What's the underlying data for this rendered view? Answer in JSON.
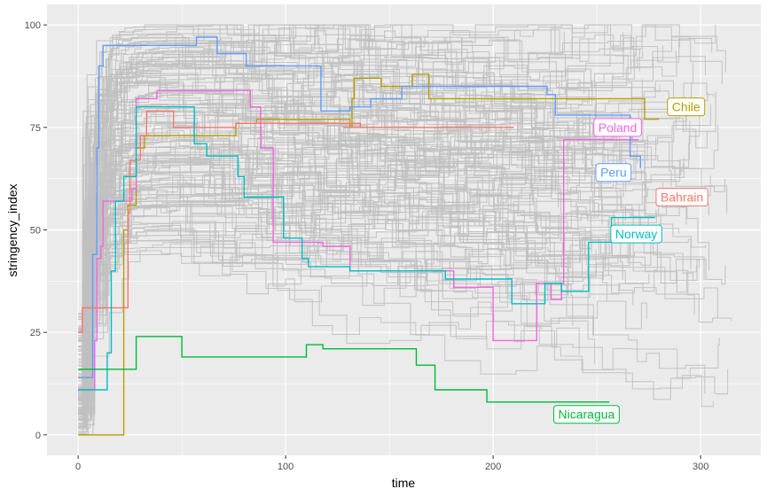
{
  "chart_data": {
    "type": "line",
    "title": "",
    "xlabel": "time",
    "ylabel": "stringency_index",
    "xlim": [
      -15,
      329
    ],
    "ylim": [
      -5,
      105
    ],
    "x_ticks": [
      0,
      100,
      200,
      300
    ],
    "y_ticks": [
      0,
      25,
      50,
      75,
      100
    ],
    "grid": true,
    "legend": "none",
    "panel_background": "#ebebeb",
    "grid_color": "#ffffff",
    "background_series_color": "#bfbfbf",
    "highlighted_series": [
      {
        "name": "Chile",
        "color": "#b79f00",
        "steps": [
          [
            0,
            0
          ],
          [
            20,
            0
          ],
          [
            22,
            50
          ],
          [
            24,
            56
          ],
          [
            27,
            56
          ],
          [
            28,
            70
          ],
          [
            32,
            73
          ],
          [
            75,
            73
          ],
          [
            76,
            76
          ],
          [
            85,
            76
          ],
          [
            86,
            77
          ],
          [
            128,
            77
          ],
          [
            131,
            75
          ],
          [
            132,
            82
          ],
          [
            133,
            87
          ],
          [
            145,
            87
          ],
          [
            146,
            85
          ],
          [
            160,
            85
          ],
          [
            161,
            88
          ],
          [
            168,
            88
          ],
          [
            169,
            82
          ],
          [
            272,
            82
          ],
          [
            273,
            77
          ],
          [
            280,
            77
          ]
        ],
        "label": "Chile",
        "label_at": [
          293,
          80
        ]
      },
      {
        "name": "Poland",
        "color": "#f564e3",
        "steps": [
          [
            0,
            11
          ],
          [
            7,
            11
          ],
          [
            8,
            23
          ],
          [
            9,
            43
          ],
          [
            11,
            46
          ],
          [
            12,
            57
          ],
          [
            25,
            57
          ],
          [
            26,
            60
          ],
          [
            28,
            82
          ],
          [
            37,
            82
          ],
          [
            38,
            84
          ],
          [
            82,
            84
          ],
          [
            83,
            80
          ],
          [
            86,
            80
          ],
          [
            88,
            70
          ],
          [
            94,
            47
          ],
          [
            117,
            47
          ],
          [
            118,
            46
          ],
          [
            130,
            46
          ],
          [
            131,
            40
          ],
          [
            180,
            40
          ],
          [
            181,
            36
          ],
          [
            199,
            36
          ],
          [
            200,
            23
          ],
          [
            220,
            23
          ],
          [
            221,
            37
          ],
          [
            227,
            37
          ],
          [
            228,
            33
          ],
          [
            230,
            33
          ],
          [
            233,
            37
          ],
          [
            234,
            72
          ],
          [
            270,
            72
          ]
        ],
        "label": "Poland",
        "label_at": [
          260,
          75
        ]
      },
      {
        "name": "Peru",
        "color": "#619cff",
        "steps": [
          [
            0,
            14
          ],
          [
            5,
            14
          ],
          [
            7,
            44
          ],
          [
            9,
            70
          ],
          [
            10,
            90
          ],
          [
            12,
            95
          ],
          [
            56,
            95
          ],
          [
            57,
            97
          ],
          [
            66,
            97
          ],
          [
            67,
            93
          ],
          [
            80,
            93
          ],
          [
            81,
            90
          ],
          [
            116,
            90
          ],
          [
            117,
            79
          ],
          [
            130,
            79
          ],
          [
            131,
            80
          ],
          [
            140,
            80
          ],
          [
            141,
            82
          ],
          [
            155,
            82
          ],
          [
            156,
            85
          ],
          [
            208,
            85
          ],
          [
            209,
            85
          ],
          [
            225,
            85
          ],
          [
            226,
            83
          ],
          [
            229,
            83
          ],
          [
            230,
            78
          ],
          [
            265,
            78
          ],
          [
            266,
            68
          ],
          [
            270,
            68
          ],
          [
            271,
            65
          ]
        ],
        "label": "Peru",
        "label_at": [
          258,
          64
        ]
      },
      {
        "name": "Bahrain",
        "color": "#f8766d",
        "steps": [
          [
            0,
            25
          ],
          [
            2,
            31
          ],
          [
            22,
            31
          ],
          [
            24,
            54
          ],
          [
            25,
            67
          ],
          [
            27,
            67
          ],
          [
            30,
            73
          ],
          [
            33,
            79
          ],
          [
            45,
            79
          ],
          [
            46,
            75
          ],
          [
            75,
            75
          ],
          [
            76,
            76
          ],
          [
            85,
            76
          ],
          [
            86,
            76
          ],
          [
            135,
            76
          ],
          [
            136,
            75
          ],
          [
            133,
            75
          ],
          [
            134,
            75
          ],
          [
            133,
            75
          ],
          [
            134,
            75
          ],
          [
            135,
            75
          ],
          [
            136,
            75
          ],
          [
            135,
            75
          ],
          [
            134,
            75
          ],
          [
            133,
            75
          ],
          [
            132,
            75
          ],
          [
            133,
            75
          ],
          [
            134,
            75
          ],
          [
            137,
            75
          ],
          [
            136,
            75
          ],
          [
            134,
            75
          ],
          [
            135,
            75
          ],
          [
            134,
            75
          ],
          [
            133,
            75
          ],
          [
            134,
            75
          ],
          [
            135,
            75
          ],
          [
            136,
            75
          ],
          [
            137,
            75
          ],
          [
            136,
            75
          ],
          [
            135,
            75
          ],
          [
            134,
            75
          ],
          [
            133,
            75
          ],
          [
            132,
            75
          ],
          [
            131,
            75
          ],
          [
            130,
            75
          ],
          [
            129,
            75
          ],
          [
            128,
            75
          ],
          [
            129,
            75
          ],
          [
            130,
            75
          ],
          [
            131,
            75
          ],
          [
            132,
            75
          ],
          [
            133,
            75
          ],
          [
            134,
            75
          ],
          [
            135,
            75
          ],
          [
            133,
            75
          ],
          [
            134,
            75
          ],
          [
            135,
            75
          ],
          [
            136,
            75
          ],
          [
            137,
            75
          ],
          [
            138,
            75
          ],
          [
            139,
            75
          ],
          [
            140,
            75
          ],
          [
            141,
            75
          ],
          [
            142,
            75
          ],
          [
            143,
            75
          ],
          [
            144,
            75
          ],
          [
            145,
            75
          ],
          [
            146,
            75
          ],
          [
            147,
            75
          ],
          [
            148,
            75
          ],
          [
            149,
            75
          ],
          [
            150,
            75
          ],
          [
            151,
            75
          ],
          [
            152,
            75
          ],
          [
            153,
            75
          ],
          [
            154,
            75
          ],
          [
            155,
            75
          ],
          [
            156,
            75
          ],
          [
            157,
            75
          ],
          [
            158,
            75
          ],
          [
            159,
            75
          ],
          [
            160,
            75
          ],
          [
            161,
            75
          ],
          [
            162,
            75
          ],
          [
            163,
            75
          ],
          [
            164,
            75
          ],
          [
            165,
            75
          ],
          [
            166,
            75
          ],
          [
            167,
            75
          ],
          [
            168,
            75
          ],
          [
            169,
            75
          ],
          [
            170,
            75
          ],
          [
            171,
            75
          ],
          [
            172,
            75
          ],
          [
            173,
            75
          ],
          [
            174,
            75
          ],
          [
            175,
            75
          ],
          [
            176,
            75
          ],
          [
            177,
            75
          ],
          [
            178,
            75
          ],
          [
            179,
            75
          ],
          [
            180,
            75
          ],
          [
            181,
            75
          ],
          [
            182,
            75
          ],
          [
            183,
            75
          ],
          [
            184,
            75
          ],
          [
            185,
            75
          ],
          [
            186,
            75
          ],
          [
            187,
            75
          ],
          [
            188,
            75
          ],
          [
            189,
            75
          ],
          [
            190,
            75
          ],
          [
            191,
            75
          ],
          [
            192,
            75
          ],
          [
            193,
            75
          ],
          [
            194,
            75
          ],
          [
            195,
            75
          ],
          [
            196,
            75
          ],
          [
            197,
            75
          ],
          [
            198,
            75
          ],
          [
            199,
            75
          ],
          [
            200,
            75
          ],
          [
            201,
            75
          ],
          [
            202,
            75
          ],
          [
            203,
            75
          ],
          [
            204,
            75
          ],
          [
            205,
            75
          ],
          [
            206,
            75
          ],
          [
            207,
            75
          ],
          [
            208,
            75
          ],
          [
            209,
            75
          ],
          [
            210,
            75
          ]
        ],
        "label": "Bahrain",
        "label_at": [
          291,
          58
        ]
      },
      {
        "name": "Norway",
        "color": "#00bfc4",
        "steps": [
          [
            0,
            11
          ],
          [
            12,
            11
          ],
          [
            14,
            20
          ],
          [
            16,
            40
          ],
          [
            18,
            57
          ],
          [
            20,
            57
          ],
          [
            22,
            63
          ],
          [
            26,
            63
          ],
          [
            28,
            80
          ],
          [
            54,
            80
          ],
          [
            56,
            71
          ],
          [
            61,
            71
          ],
          [
            62,
            68
          ],
          [
            76,
            68
          ],
          [
            77,
            63
          ],
          [
            78,
            63
          ],
          [
            80,
            58
          ],
          [
            98,
            58
          ],
          [
            99,
            48
          ],
          [
            107,
            48
          ],
          [
            108,
            43
          ],
          [
            110,
            43
          ],
          [
            111,
            41
          ],
          [
            130,
            41
          ],
          [
            131,
            40
          ],
          [
            176,
            40
          ],
          [
            177,
            38
          ],
          [
            206,
            38
          ],
          [
            207,
            38
          ],
          [
            209,
            32
          ],
          [
            224,
            32
          ],
          [
            225,
            37
          ],
          [
            232,
            37
          ],
          [
            233,
            35
          ],
          [
            245,
            35
          ],
          [
            246,
            47
          ],
          [
            256,
            47
          ],
          [
            257,
            53
          ],
          [
            278,
            53
          ]
        ],
        "label": "Norway",
        "label_at": [
          269,
          49
        ]
      },
      {
        "name": "Nicaragua",
        "color": "#00ba38",
        "steps": [
          [
            0,
            16
          ],
          [
            26,
            16
          ],
          [
            28,
            24
          ],
          [
            49,
            24
          ],
          [
            50,
            19
          ],
          [
            108,
            19
          ],
          [
            110,
            22
          ],
          [
            117,
            22
          ],
          [
            118,
            21
          ],
          [
            162,
            21
          ],
          [
            163,
            17
          ],
          [
            171,
            17
          ],
          [
            172,
            11
          ],
          [
            196,
            11
          ],
          [
            197,
            8
          ],
          [
            256,
            8
          ]
        ],
        "label": "Nicaragua",
        "label_at": [
          245,
          5
        ]
      }
    ]
  }
}
